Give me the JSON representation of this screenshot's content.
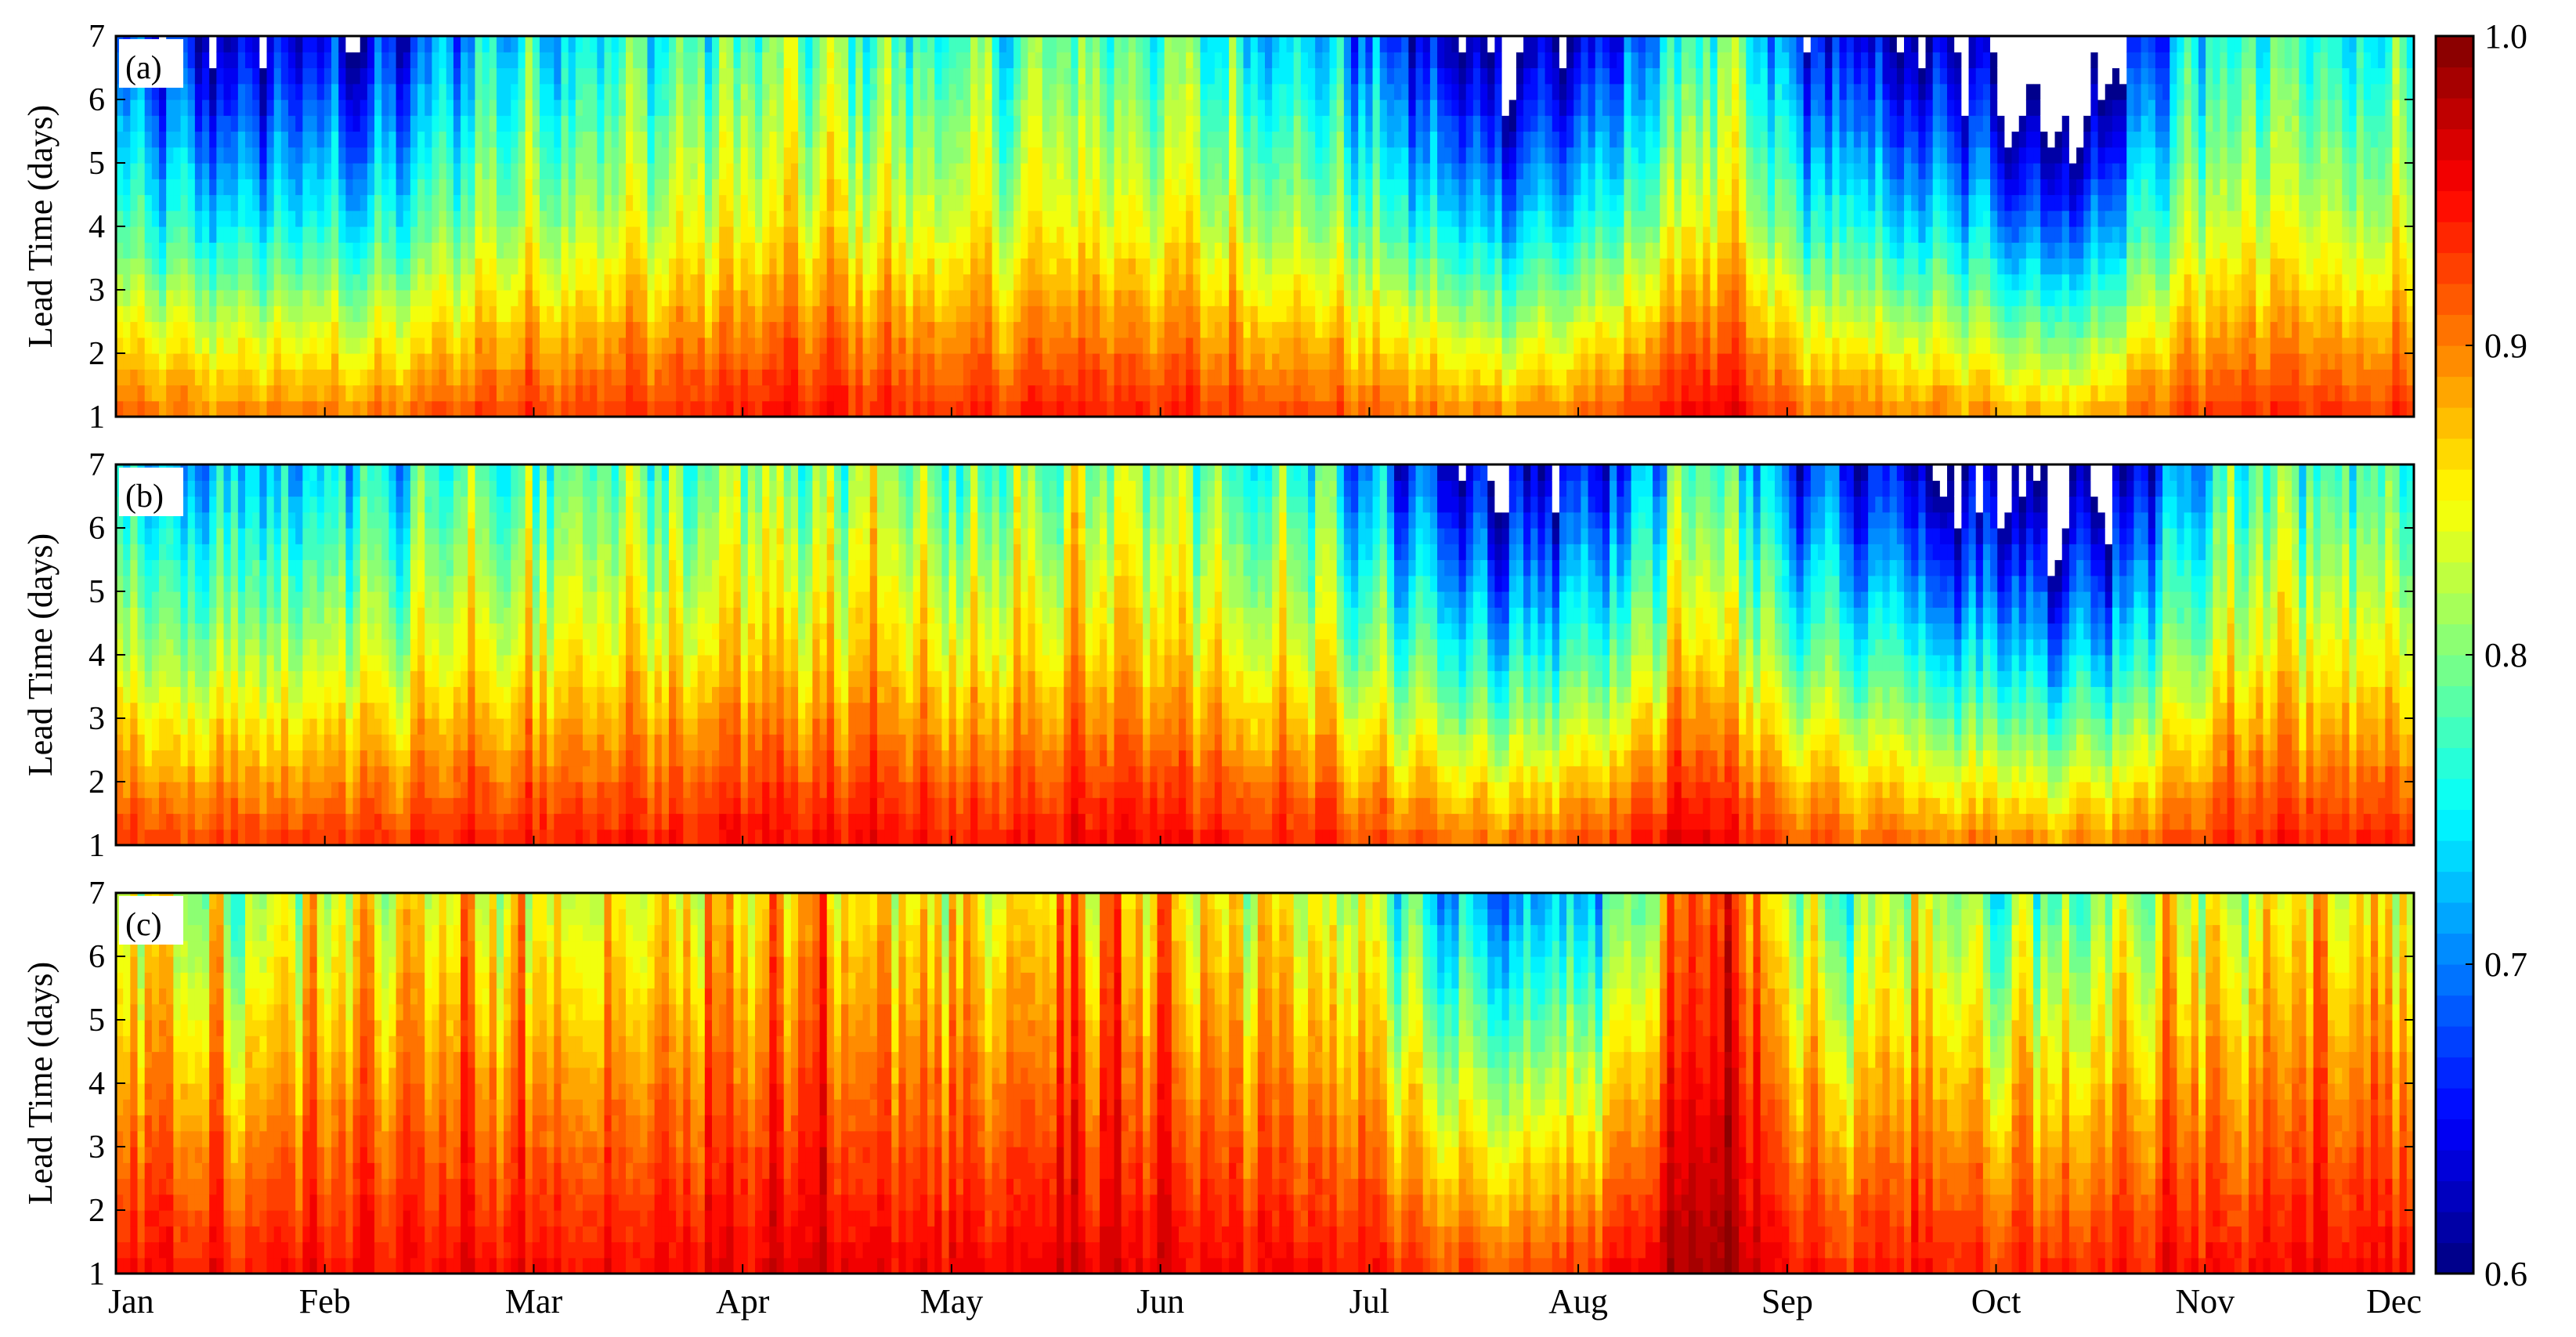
{
  "chart_data": {
    "type": "heatmap",
    "title": "",
    "xlabel": "",
    "ylabel": "Lead Time (days)",
    "x_ticks": [
      "Jan",
      "Feb",
      "Mar",
      "Apr",
      "May",
      "Jun",
      "Jul",
      "Aug",
      "Sep",
      "Oct",
      "Nov",
      "Dec"
    ],
    "y_ticks": [
      1,
      2,
      3,
      4,
      5,
      6,
      7
    ],
    "ylim": [
      1,
      7
    ],
    "colorbar": {
      "min": 0.6,
      "max": 1.0,
      "ticks": [
        "0.6",
        "0.7",
        "0.8",
        "0.9",
        "1.0"
      ],
      "colormap": "jet",
      "below_min_color": "#ffffff"
    },
    "panels": [
      {
        "label": "(a)",
        "typical_values": {
          "lead_1_day": 0.93,
          "lead_4_days": 0.83,
          "lead_7_days": 0.76
        },
        "low_value_periods": [
          "Jan",
          "late Jul–Aug",
          "Sep–Oct",
          "late Oct–Nov"
        ]
      },
      {
        "label": "(b)",
        "typical_values": {
          "lead_1_day": 0.94,
          "lead_4_days": 0.85,
          "lead_7_days": 0.78
        },
        "low_value_periods": [
          "late Jul–Aug",
          "Sep–Oct",
          "late Oct–Nov"
        ]
      },
      {
        "label": "(c)",
        "typical_values": {
          "lead_1_day": 0.95,
          "lead_4_days": 0.9,
          "lead_7_days": 0.85
        },
        "low_value_periods": [
          "late Jul–Aug",
          "Sep",
          "Oct–Nov"
        ]
      }
    ]
  }
}
